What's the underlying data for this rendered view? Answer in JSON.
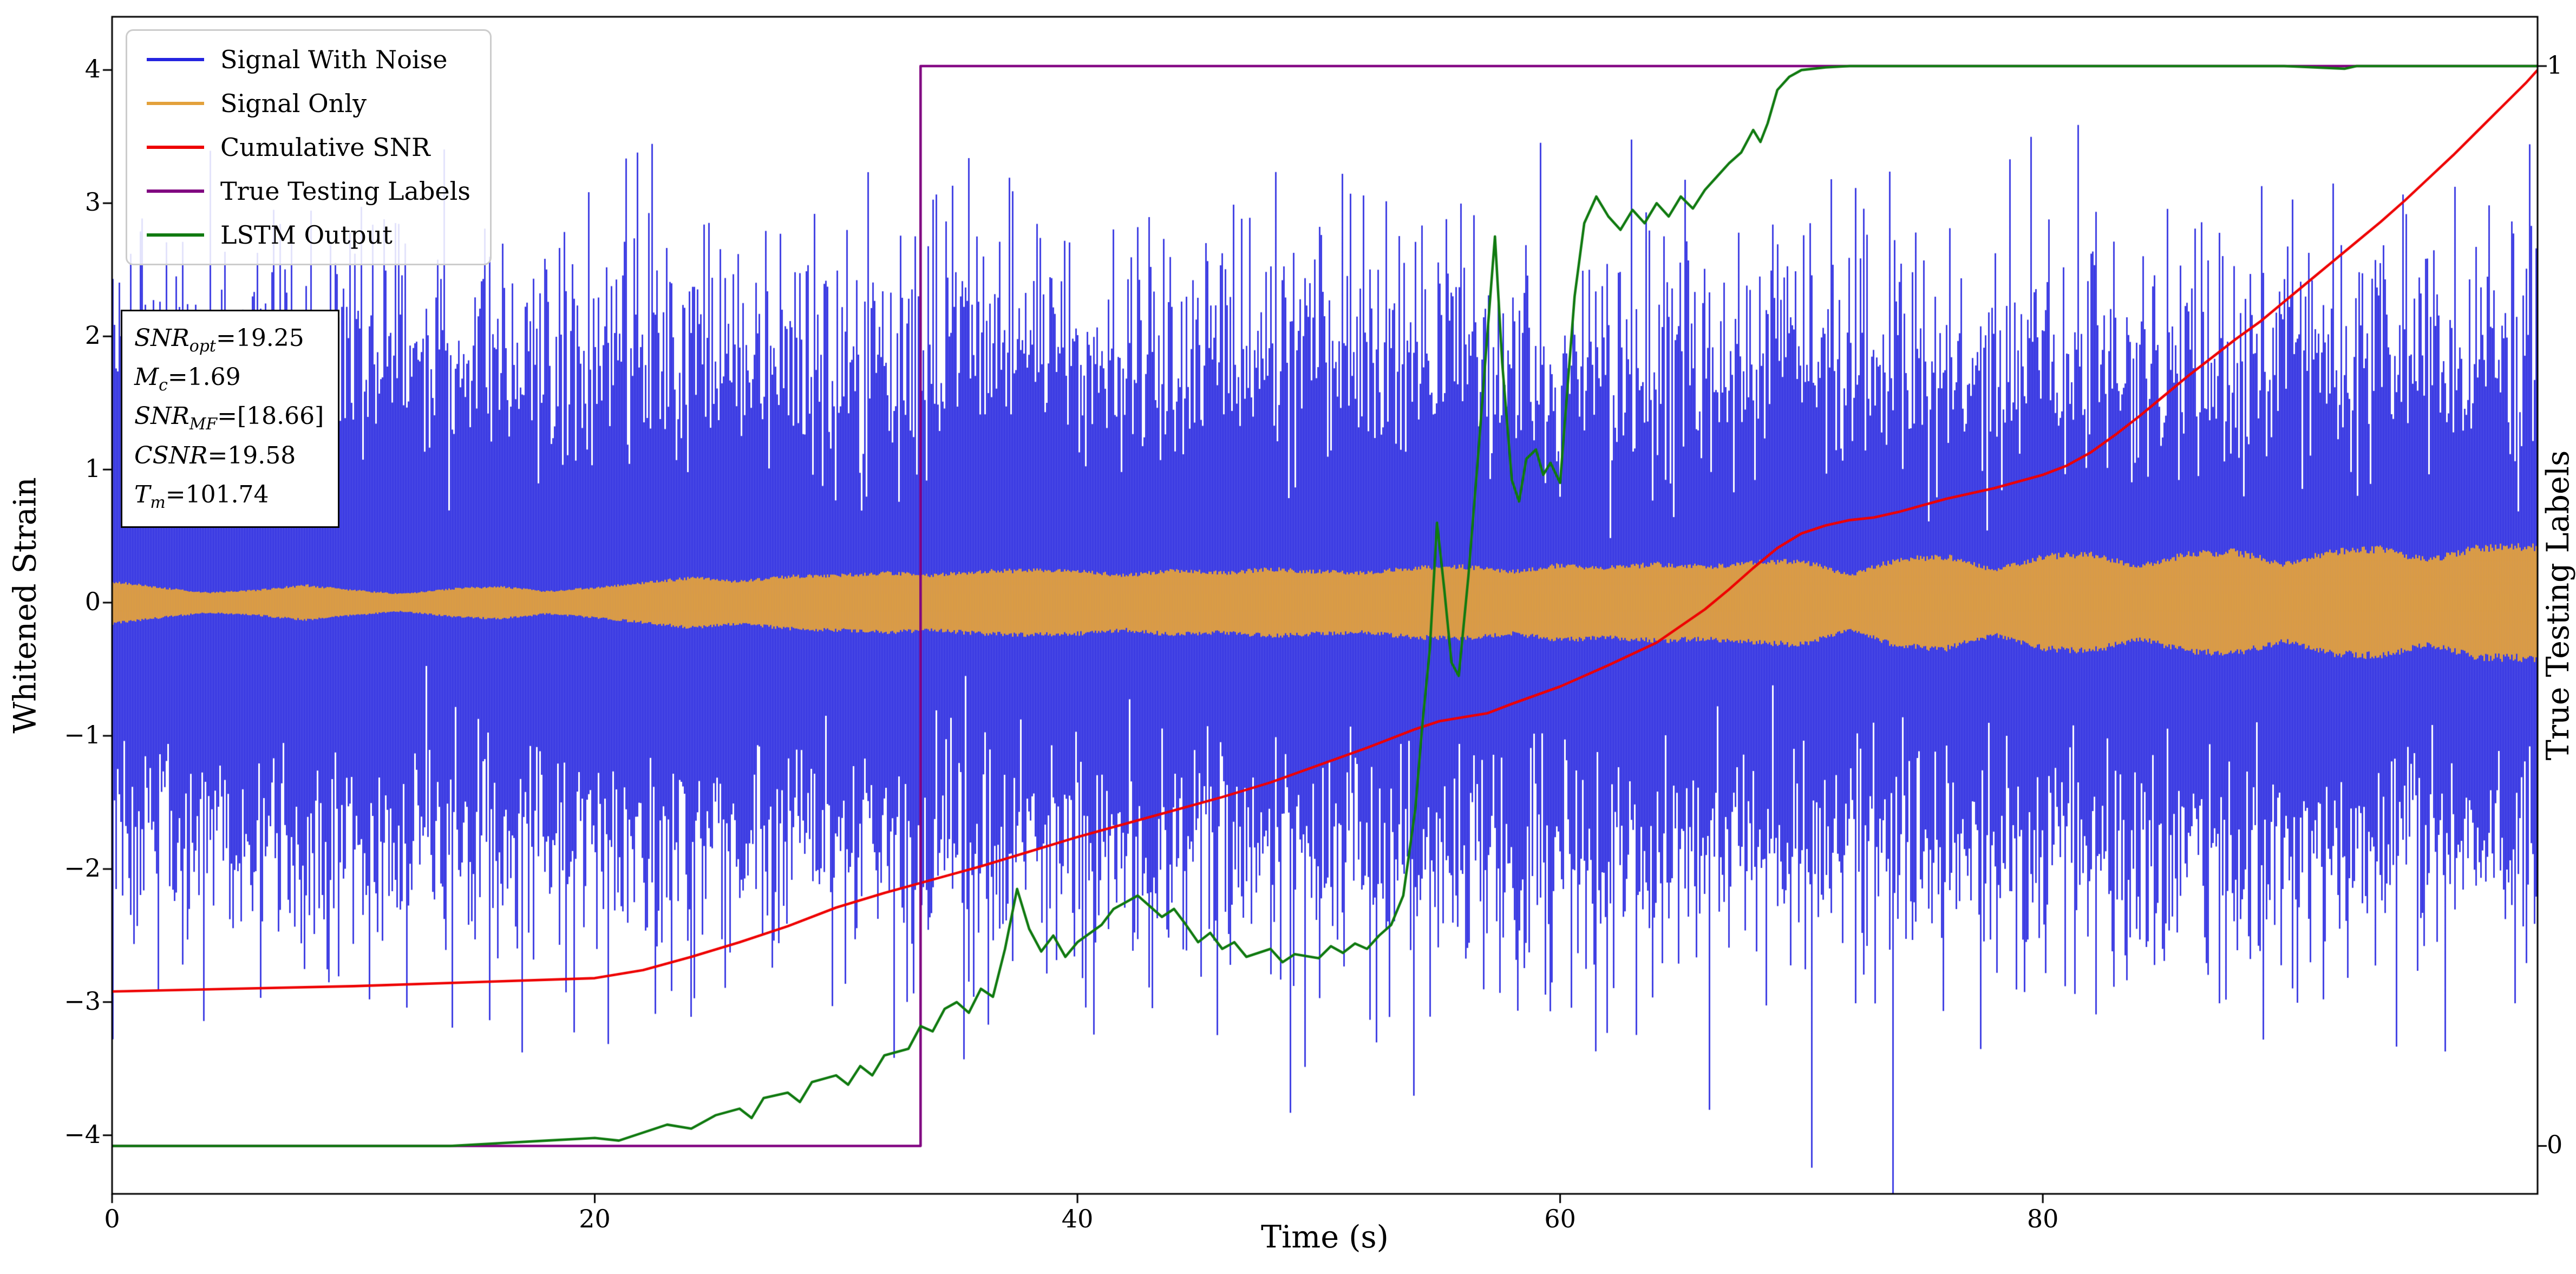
{
  "axes": {
    "xlabel": "Time (s)",
    "ylabel_left": "Whitened Strain",
    "ylabel_right": "True Testing Labels",
    "x_ticks": {
      "values": [
        0,
        20,
        40,
        60,
        80
      ],
      "labels": [
        "0",
        "20",
        "40",
        "60",
        "80"
      ]
    },
    "y_ticks": {
      "values": [
        4,
        3,
        2,
        1,
        0,
        -1,
        -2,
        -3,
        -4
      ],
      "labels": [
        "4",
        "3",
        "2",
        "1",
        "0",
        "−1",
        "−2",
        "−3",
        "−4"
      ]
    },
    "y2_ticks": {
      "values": [
        4.03,
        -4.08
      ],
      "labels": [
        "1",
        "0"
      ]
    },
    "axis_color": "#000000"
  },
  "annotation": {
    "lines": [
      {
        "name": "SNR",
        "sub": "opt",
        "value": "=19.25"
      },
      {
        "name": "M",
        "sub": "c",
        "value": "=1.69"
      },
      {
        "name": "SNR",
        "sub": "MF",
        "value": "=[18.66]"
      },
      {
        "name": "CSNR",
        "sub": "",
        "value": "=19.58"
      },
      {
        "name": "T",
        "sub": "m",
        "value": "=101.74"
      }
    ]
  },
  "chart_data": {
    "type": "line",
    "title": "",
    "xlabel": "Time (s)",
    "ylabel": "Whitened Strain",
    "y2label": "True Testing Labels",
    "xlim": [
      0,
      100.5
    ],
    "ylim": [
      -4.44,
      4.4
    ],
    "grid": false,
    "legend_position": "upper left",
    "series": [
      {
        "name": "Signal With Noise",
        "color": "#2424e0",
        "type": "noise",
        "mean": 0,
        "std": 1.0,
        "samples_per_column": 22,
        "seed": 42
      },
      {
        "name": "Signal Only",
        "color": "#e3a13c",
        "type": "band",
        "envelope": [
          [
            0,
            0.17
          ],
          [
            2,
            0.12
          ],
          [
            4,
            0.08
          ],
          [
            6,
            0.1
          ],
          [
            8,
            0.14
          ],
          [
            10,
            0.1
          ],
          [
            12,
            0.07
          ],
          [
            14,
            0.11
          ],
          [
            16,
            0.13
          ],
          [
            18,
            0.09
          ],
          [
            20,
            0.12
          ],
          [
            22,
            0.16
          ],
          [
            24,
            0.2
          ],
          [
            26,
            0.17
          ],
          [
            28,
            0.21
          ],
          [
            30,
            0.22
          ],
          [
            32,
            0.24
          ],
          [
            34,
            0.22
          ],
          [
            36,
            0.25
          ],
          [
            38,
            0.26
          ],
          [
            40,
            0.25
          ],
          [
            42,
            0.22
          ],
          [
            44,
            0.26
          ],
          [
            46,
            0.24
          ],
          [
            48,
            0.27
          ],
          [
            50,
            0.25
          ],
          [
            52,
            0.24
          ],
          [
            54,
            0.28
          ],
          [
            56,
            0.29
          ],
          [
            58,
            0.25
          ],
          [
            60,
            0.3
          ],
          [
            62,
            0.28
          ],
          [
            64,
            0.31
          ],
          [
            66,
            0.29
          ],
          [
            68,
            0.32
          ],
          [
            70,
            0.34
          ],
          [
            72,
            0.22
          ],
          [
            74,
            0.35
          ],
          [
            76,
            0.37
          ],
          [
            78,
            0.26
          ],
          [
            80,
            0.37
          ],
          [
            82,
            0.39
          ],
          [
            84,
            0.29
          ],
          [
            86,
            0.39
          ],
          [
            88,
            0.41
          ],
          [
            90,
            0.31
          ],
          [
            92,
            0.41
          ],
          [
            94,
            0.43
          ],
          [
            96,
            0.34
          ],
          [
            98,
            0.44
          ],
          [
            100.5,
            0.45
          ]
        ]
      },
      {
        "name": "Cumulative SNR",
        "color": "#ee0000",
        "type": "line",
        "points": [
          [
            0,
            -2.92
          ],
          [
            5,
            -2.9
          ],
          [
            10,
            -2.88
          ],
          [
            15,
            -2.85
          ],
          [
            20,
            -2.82
          ],
          [
            22,
            -2.76
          ],
          [
            24,
            -2.66
          ],
          [
            26,
            -2.55
          ],
          [
            28,
            -2.43
          ],
          [
            30,
            -2.29
          ],
          [
            32,
            -2.18
          ],
          [
            34,
            -2.08
          ],
          [
            36,
            -1.98
          ],
          [
            38,
            -1.87
          ],
          [
            40,
            -1.76
          ],
          [
            42,
            -1.66
          ],
          [
            44,
            -1.56
          ],
          [
            46,
            -1.46
          ],
          [
            48,
            -1.35
          ],
          [
            50,
            -1.22
          ],
          [
            52,
            -1.09
          ],
          [
            54,
            -0.95
          ],
          [
            55,
            -0.89
          ],
          [
            56,
            -0.86
          ],
          [
            57,
            -0.83
          ],
          [
            58,
            -0.76
          ],
          [
            60,
            -0.63
          ],
          [
            62,
            -0.47
          ],
          [
            64,
            -0.3
          ],
          [
            66,
            -0.05
          ],
          [
            67,
            0.1
          ],
          [
            68,
            0.26
          ],
          [
            69,
            0.41
          ],
          [
            70,
            0.52
          ],
          [
            71,
            0.58
          ],
          [
            72,
            0.62
          ],
          [
            73,
            0.64
          ],
          [
            74,
            0.68
          ],
          [
            75,
            0.73
          ],
          [
            76,
            0.78
          ],
          [
            78,
            0.86
          ],
          [
            80,
            0.96
          ],
          [
            81,
            1.03
          ],
          [
            82,
            1.13
          ],
          [
            83,
            1.26
          ],
          [
            84,
            1.4
          ],
          [
            85,
            1.55
          ],
          [
            86,
            1.7
          ],
          [
            87,
            1.84
          ],
          [
            88,
            1.98
          ],
          [
            89,
            2.11
          ],
          [
            90,
            2.26
          ],
          [
            91,
            2.41
          ],
          [
            92,
            2.56
          ],
          [
            93,
            2.71
          ],
          [
            94,
            2.86
          ],
          [
            95,
            3.02
          ],
          [
            96,
            3.19
          ],
          [
            97,
            3.36
          ],
          [
            98,
            3.54
          ],
          [
            99,
            3.72
          ],
          [
            100,
            3.9
          ],
          [
            100.5,
            4.0
          ]
        ]
      },
      {
        "name": "True Testing Labels",
        "color": "#800080",
        "type": "step",
        "points": [
          [
            0,
            -4.08
          ],
          [
            33.5,
            -4.08
          ],
          [
            33.5,
            4.03
          ],
          [
            100.5,
            4.03
          ]
        ]
      },
      {
        "name": "LSTM Output",
        "color": "#107a10",
        "type": "line",
        "points": [
          [
            0,
            -4.08
          ],
          [
            14,
            -4.08
          ],
          [
            16,
            -4.06
          ],
          [
            18,
            -4.04
          ],
          [
            20,
            -4.02
          ],
          [
            21,
            -4.04
          ],
          [
            22,
            -3.98
          ],
          [
            23,
            -3.92
          ],
          [
            24,
            -3.95
          ],
          [
            25,
            -3.85
          ],
          [
            26,
            -3.8
          ],
          [
            26.5,
            -3.87
          ],
          [
            27,
            -3.72
          ],
          [
            28,
            -3.68
          ],
          [
            28.5,
            -3.75
          ],
          [
            29,
            -3.6
          ],
          [
            30,
            -3.55
          ],
          [
            30.5,
            -3.62
          ],
          [
            31,
            -3.48
          ],
          [
            31.5,
            -3.55
          ],
          [
            32,
            -3.4
          ],
          [
            33,
            -3.35
          ],
          [
            33.5,
            -3.18
          ],
          [
            34,
            -3.22
          ],
          [
            34.5,
            -3.05
          ],
          [
            35,
            -3.0
          ],
          [
            35.5,
            -3.08
          ],
          [
            36,
            -2.9
          ],
          [
            36.5,
            -2.96
          ],
          [
            37,
            -2.6
          ],
          [
            37.5,
            -2.15
          ],
          [
            38,
            -2.45
          ],
          [
            38.5,
            -2.62
          ],
          [
            39,
            -2.5
          ],
          [
            39.5,
            -2.66
          ],
          [
            40,
            -2.55
          ],
          [
            41,
            -2.42
          ],
          [
            41.5,
            -2.3
          ],
          [
            42,
            -2.25
          ],
          [
            42.5,
            -2.2
          ],
          [
            43,
            -2.28
          ],
          [
            43.5,
            -2.36
          ],
          [
            44,
            -2.3
          ],
          [
            44.5,
            -2.42
          ],
          [
            45,
            -2.55
          ],
          [
            45.5,
            -2.48
          ],
          [
            46,
            -2.6
          ],
          [
            46.5,
            -2.55
          ],
          [
            47,
            -2.66
          ],
          [
            48,
            -2.6
          ],
          [
            48.5,
            -2.7
          ],
          [
            49,
            -2.64
          ],
          [
            50,
            -2.67
          ],
          [
            50.5,
            -2.58
          ],
          [
            51,
            -2.63
          ],
          [
            51.5,
            -2.56
          ],
          [
            52,
            -2.6
          ],
          [
            52.5,
            -2.5
          ],
          [
            53,
            -2.42
          ],
          [
            53.5,
            -2.2
          ],
          [
            54,
            -1.55
          ],
          [
            54.3,
            -0.9
          ],
          [
            54.6,
            -0.35
          ],
          [
            54.9,
            0.6
          ],
          [
            55.2,
            0.1
          ],
          [
            55.5,
            -0.45
          ],
          [
            55.8,
            -0.55
          ],
          [
            56.2,
            0.2
          ],
          [
            56.6,
            1.1
          ],
          [
            57,
            2.05
          ],
          [
            57.3,
            2.75
          ],
          [
            57.6,
            1.8
          ],
          [
            58,
            0.92
          ],
          [
            58.3,
            0.76
          ],
          [
            58.6,
            1.08
          ],
          [
            59,
            1.15
          ],
          [
            59.3,
            0.96
          ],
          [
            59.6,
            1.05
          ],
          [
            60,
            0.9
          ],
          [
            60.3,
            1.6
          ],
          [
            60.6,
            2.3
          ],
          [
            61,
            2.85
          ],
          [
            61.5,
            3.05
          ],
          [
            62,
            2.9
          ],
          [
            62.5,
            2.8
          ],
          [
            63,
            2.95
          ],
          [
            63.5,
            2.85
          ],
          [
            64,
            3.0
          ],
          [
            64.5,
            2.9
          ],
          [
            65,
            3.05
          ],
          [
            65.5,
            2.96
          ],
          [
            66,
            3.1
          ],
          [
            66.5,
            3.2
          ],
          [
            67,
            3.3
          ],
          [
            67.5,
            3.38
          ],
          [
            68,
            3.55
          ],
          [
            68.3,
            3.46
          ],
          [
            68.6,
            3.6
          ],
          [
            69,
            3.85
          ],
          [
            69.5,
            3.95
          ],
          [
            70,
            4.0
          ],
          [
            71,
            4.02
          ],
          [
            72,
            4.03
          ],
          [
            75,
            4.03
          ],
          [
            80,
            4.03
          ],
          [
            85,
            4.03
          ],
          [
            90,
            4.03
          ],
          [
            92.5,
            4.01
          ],
          [
            93,
            4.03
          ],
          [
            100.5,
            4.03
          ]
        ]
      }
    ]
  }
}
